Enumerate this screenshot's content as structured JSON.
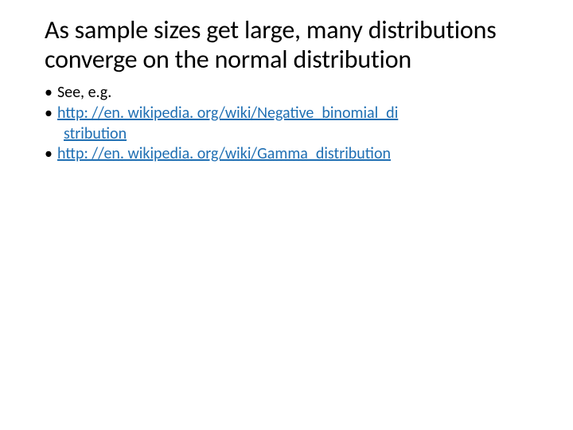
{
  "slide": {
    "title": "As sample sizes get large, many distributions converge on the normal distribution",
    "bullets": [
      {
        "text": "See, e.g.",
        "is_link": false
      },
      {
        "text_line1": "http: //en. wikipedia. org/wiki/Negative_binomial_di",
        "text_line2": "stribution",
        "is_link": true
      },
      {
        "text": "http: //en. wikipedia. org/wiki/Gamma_distribution",
        "is_link": true
      }
    ]
  },
  "styling": {
    "background_color": "#ffffff",
    "title_color": "#000000",
    "title_fontsize": 32,
    "body_fontsize": 20,
    "body_color": "#000000",
    "link_color": "#1f6fb3",
    "font_family": "Calibri"
  }
}
